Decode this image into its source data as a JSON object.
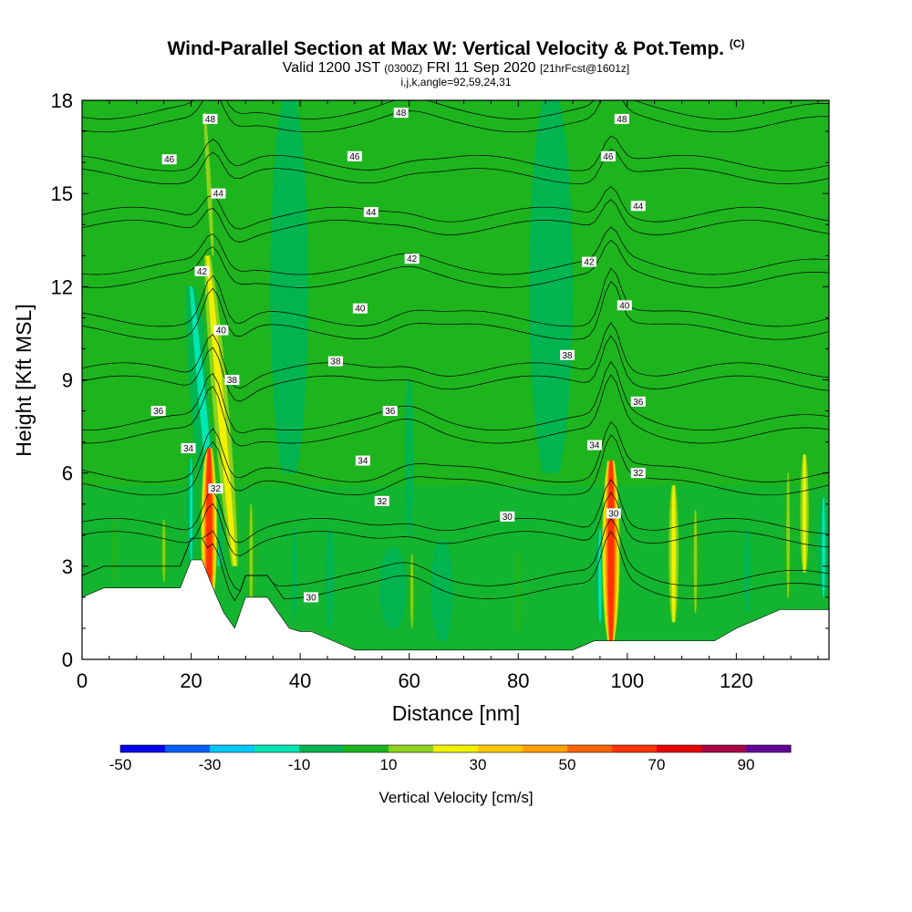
{
  "title": {
    "main": "Wind-Parallel Section at Max W: Vertical Velocity & Pot.Temp.",
    "copyright": "(C)",
    "valid_prefix": "Valid 1200 JST",
    "valid_utc": "(0300Z)",
    "valid_date": "FRI 11 Sep 2020",
    "forecast_info": "[21hrFcst@1601z]",
    "indices": "i,j,k,angle=92,59,24,31"
  },
  "chart_data": {
    "type": "heatmap",
    "xlabel": "Distance [nm]",
    "ylabel": "Height [Kft MSL]",
    "xlim": [
      0,
      137
    ],
    "ylim": [
      0,
      18
    ],
    "x_ticks": [
      0,
      20,
      40,
      60,
      80,
      100,
      120
    ],
    "y_ticks": [
      0,
      3,
      6,
      9,
      12,
      15,
      18
    ],
    "colorbar": {
      "label": "Vertical Velocity [cm/s]",
      "tick_labels": [
        "-50",
        "-30",
        "-10",
        "10",
        "30",
        "50",
        "70",
        "90"
      ],
      "bounds": [
        -50,
        100
      ],
      "colors": [
        "#0000ee",
        "#0060ff",
        "#00c8ff",
        "#00e6b4",
        "#00b450",
        "#1eb41e",
        "#8cd21e",
        "#f0f000",
        "#ffc800",
        "#ffa000",
        "#ff6400",
        "#ff3200",
        "#e60000",
        "#aa0046",
        "#640096"
      ]
    },
    "background_value": 2,
    "terrain_kft": [
      [
        0,
        2.0
      ],
      [
        4,
        2.3
      ],
      [
        18,
        2.3
      ],
      [
        20,
        3.2
      ],
      [
        22,
        3.2
      ],
      [
        24,
        2.3
      ],
      [
        26,
        1.5
      ],
      [
        28,
        1.0
      ],
      [
        30,
        2.0
      ],
      [
        34,
        2.0
      ],
      [
        36,
        1.5
      ],
      [
        38,
        1.0
      ],
      [
        40,
        0.9
      ],
      [
        42,
        0.9
      ],
      [
        46,
        0.6
      ],
      [
        50,
        0.3
      ],
      [
        90,
        0.3
      ],
      [
        94,
        0.6
      ],
      [
        116,
        0.6
      ],
      [
        120,
        1.0
      ],
      [
        124,
        1.3
      ],
      [
        128,
        1.6
      ],
      [
        137,
        1.6
      ]
    ],
    "updraft_cells": [
      {
        "x": 23.3,
        "z0": 1.6,
        "z1": 6.8,
        "w": 72,
        "hw": 1.0
      },
      {
        "x": 97.0,
        "z0": 0.6,
        "z1": 6.4,
        "w": 75,
        "hw": 1.1
      },
      {
        "x": 28.0,
        "z0": 3.0,
        "z1": 13.0,
        "w": 38,
        "hw": 1.3,
        "tilt_to": 23.0
      },
      {
        "x": 24.0,
        "z0": 13.0,
        "z1": 17.6,
        "w": 28,
        "hw": 0.8,
        "tilt_to": 22.5
      },
      {
        "x": 15.0,
        "z0": 2.5,
        "z1": 4.5,
        "w": 25,
        "hw": 0.5
      },
      {
        "x": 31.0,
        "z0": 1.5,
        "z1": 5.0,
        "w": 22,
        "hw": 0.6
      },
      {
        "x": 108.5,
        "z0": 1.2,
        "z1": 5.6,
        "w": 33,
        "hw": 0.8
      },
      {
        "x": 112.5,
        "z0": 1.5,
        "z1": 4.8,
        "w": 22,
        "hw": 0.6
      },
      {
        "x": 129.5,
        "z0": 2.0,
        "z1": 6.0,
        "w": 28,
        "hw": 0.6
      },
      {
        "x": 132.5,
        "z0": 2.8,
        "z1": 6.6,
        "w": 30,
        "hw": 0.7
      },
      {
        "x": 60.5,
        "z0": 1.0,
        "z1": 3.4,
        "w": 22,
        "hw": 0.5
      },
      {
        "x": 6.0,
        "z0": 2.5,
        "z1": 4.5,
        "w": 16,
        "hw": 0.6
      },
      {
        "x": 80.0,
        "z0": 0.8,
        "z1": 3.5,
        "w": 14,
        "hw": 0.7
      },
      {
        "x": 60.0,
        "z0": 10.5,
        "z1": 12.5,
        "w": 16,
        "hw": 0.5
      },
      {
        "x": 100.0,
        "z0": 7.2,
        "z1": 8.6,
        "w": 16,
        "hw": 0.5
      },
      {
        "x": 12.0,
        "z0": 8.0,
        "z1": 16.0,
        "w": 13,
        "hw": 1.5
      },
      {
        "x": 72.0,
        "z0": 6.0,
        "z1": 18.0,
        "w": 12,
        "hw": 1.5
      }
    ],
    "downdraft_cells": [
      {
        "x": 24.0,
        "z0": 7.2,
        "z1": 10.6,
        "w": -48,
        "hw": 0.9,
        "tilt_to": 22.8
      },
      {
        "x": 25.0,
        "z0": 3.0,
        "z1": 12.0,
        "w": -22,
        "hw": 1.3,
        "tilt_to": 20.0
      },
      {
        "x": 20.0,
        "z0": 3.0,
        "z1": 6.5,
        "w": -28,
        "hw": 0.5
      },
      {
        "x": 95.0,
        "z0": 1.2,
        "z1": 4.2,
        "w": -28,
        "hw": 0.6
      },
      {
        "x": 45.5,
        "z0": 1.0,
        "z1": 4.2,
        "w": -15,
        "hw": 0.8
      },
      {
        "x": 57.0,
        "z0": 1.0,
        "z1": 3.6,
        "w": -12,
        "hw": 2.5
      },
      {
        "x": 66.0,
        "z0": 0.6,
        "z1": 3.8,
        "w": -18,
        "hw": 2.0
      },
      {
        "x": 39.0,
        "z0": 1.2,
        "z1": 4.2,
        "w": -14,
        "hw": 0.5
      },
      {
        "x": 122.0,
        "z0": 1.5,
        "z1": 4.2,
        "w": -12,
        "hw": 0.6
      },
      {
        "x": 136.0,
        "z0": 2.0,
        "z1": 5.2,
        "w": -22,
        "hw": 0.6
      },
      {
        "x": 60.0,
        "z0": 4.0,
        "z1": 9.0,
        "w": -12,
        "hw": 0.8
      },
      {
        "x": 39.0,
        "z0": 8.5,
        "z1": 10.5,
        "w": -12,
        "hw": 0.5
      },
      {
        "x": 38.0,
        "z0": 6.0,
        "z1": 18.0,
        "w": -5,
        "hw": 3.5
      },
      {
        "x": 86.0,
        "z0": 6.0,
        "z1": 18.0,
        "w": -5,
        "hw": 4.0
      }
    ],
    "theta_values": [
      30,
      32,
      34,
      36,
      38,
      40,
      42,
      44,
      46,
      48
    ],
    "theta_labels": [
      {
        "text": "30",
        "x": 42.0,
        "z": 2.0
      },
      {
        "text": "30",
        "x": 78.0,
        "z": 4.6
      },
      {
        "text": "30",
        "x": 97.5,
        "z": 4.7
      },
      {
        "text": "32",
        "x": 55.0,
        "z": 5.1
      },
      {
        "text": "32",
        "x": 24.5,
        "z": 5.5
      },
      {
        "text": "32",
        "x": 102.0,
        "z": 6.0
      },
      {
        "text": "34",
        "x": 19.5,
        "z": 6.8
      },
      {
        "text": "34",
        "x": 51.5,
        "z": 6.4
      },
      {
        "text": "34",
        "x": 94.0,
        "z": 6.9
      },
      {
        "text": "36",
        "x": 14.0,
        "z": 8.0
      },
      {
        "text": "36",
        "x": 56.5,
        "z": 8.0
      },
      {
        "text": "36",
        "x": 102.0,
        "z": 8.3
      },
      {
        "text": "38",
        "x": 27.5,
        "z": 9.0
      },
      {
        "text": "38",
        "x": 46.5,
        "z": 9.6
      },
      {
        "text": "38",
        "x": 89.0,
        "z": 9.8
      },
      {
        "text": "40",
        "x": 25.5,
        "z": 10.6
      },
      {
        "text": "40",
        "x": 51.0,
        "z": 11.3
      },
      {
        "text": "40",
        "x": 99.5,
        "z": 11.4
      },
      {
        "text": "42",
        "x": 22.0,
        "z": 12.5
      },
      {
        "text": "42",
        "x": 60.5,
        "z": 12.9
      },
      {
        "text": "42",
        "x": 93.0,
        "z": 12.8
      },
      {
        "text": "44",
        "x": 25.0,
        "z": 15.0
      },
      {
        "text": "44",
        "x": 53.0,
        "z": 14.4
      },
      {
        "text": "44",
        "x": 102.0,
        "z": 14.6
      },
      {
        "text": "46",
        "x": 16.0,
        "z": 16.1
      },
      {
        "text": "46",
        "x": 50.0,
        "z": 16.2
      },
      {
        "text": "46",
        "x": 96.5,
        "z": 16.2
      },
      {
        "text": "48",
        "x": 23.5,
        "z": 17.4
      },
      {
        "text": "48",
        "x": 58.5,
        "z": 17.6
      },
      {
        "text": "48",
        "x": 99.0,
        "z": 17.4
      }
    ]
  }
}
